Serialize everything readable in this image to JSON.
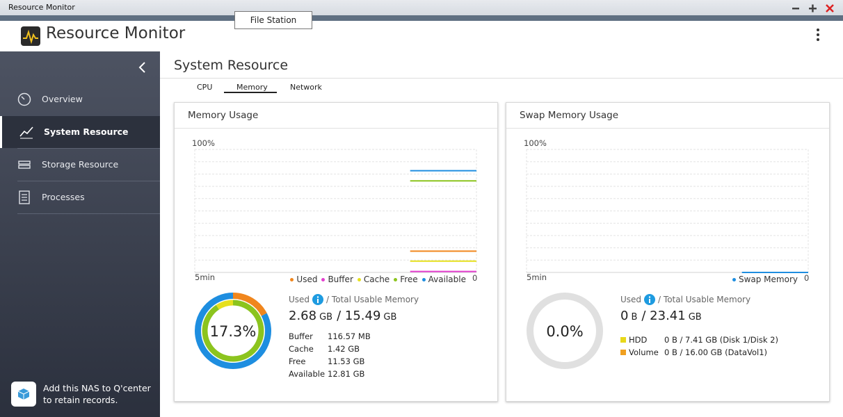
{
  "window": {
    "title": "Resource Monitor",
    "tooltip": "File Station"
  },
  "header": {
    "title": "Resource Monitor"
  },
  "sidebar": {
    "items": [
      "Overview",
      "System Resource",
      "Storage Resource",
      "Processes"
    ],
    "footer": [
      "Add this NAS to Q'center",
      "to retain records."
    ]
  },
  "main": {
    "title": "System Resource",
    "tabs": [
      "CPU",
      "Memory",
      "Network"
    ]
  },
  "panels": [
    {
      "title": "Memory Usage",
      "chart_data": {
        "type": "line",
        "x_label": "5min",
        "ylim": [
          0,
          100
        ],
        "yticks": [
          0,
          {
            "value": 100,
            "label": "100%"
          }
        ],
        "series": [
          {
            "name": "Used",
            "color": "#f0861d",
            "values": [
              null,
              null,
              null,
              null,
              null,
              null,
              null,
              null,
              null,
              null,
              null,
              null,
              null,
              17.3,
              17.3,
              17.3,
              17.3,
              17.3
            ]
          },
          {
            "name": "Buffer",
            "color": "#e43fcf",
            "values": [
              null,
              null,
              null,
              null,
              null,
              null,
              null,
              null,
              null,
              null,
              null,
              null,
              null,
              0.8,
              0.8,
              0.8,
              0.8,
              0.8
            ]
          },
          {
            "name": "Cache",
            "color": "#e6e01e",
            "values": [
              null,
              null,
              null,
              null,
              null,
              null,
              null,
              null,
              null,
              null,
              null,
              null,
              null,
              9.2,
              9.2,
              9.2,
              9.2,
              9.2
            ]
          },
          {
            "name": "Free",
            "color": "#8cc41e",
            "values": [
              null,
              null,
              null,
              null,
              null,
              null,
              null,
              null,
              null,
              null,
              null,
              null,
              null,
              74.4,
              74.4,
              74.4,
              74.4,
              74.4
            ]
          },
          {
            "name": "Available",
            "color": "#1e8ee0",
            "values": [
              null,
              null,
              null,
              null,
              null,
              null,
              null,
              null,
              null,
              null,
              null,
              null,
              null,
              82.7,
              82.7,
              82.7,
              82.7,
              82.7
            ]
          }
        ]
      },
      "donut": {
        "value": 17.3,
        "value_label": "17.3%"
      },
      "stats": {
        "labels": [
          "Used",
          "/ Total Usable Memory"
        ],
        "amount": [
          "2.68",
          "GB",
          "/ 15.49",
          "GB"
        ],
        "rows": [
          {
            "label": "Buffer",
            "value": "116.57 MB"
          },
          {
            "label": "Cache",
            "value": "1.42 GB"
          },
          {
            "label": "Free",
            "value": "11.53 GB"
          },
          {
            "label": "Available",
            "value": "12.81 GB"
          }
        ]
      }
    },
    {
      "title": "Swap Memory Usage",
      "chart_data": {
        "type": "line",
        "x_label": "5min",
        "ylim": [
          0,
          100
        ],
        "yticks": [
          0,
          {
            "value": 100,
            "label": "100%"
          }
        ],
        "series": [
          {
            "name": "Swap Memory",
            "color": "#1e8ee0",
            "values": [
              null,
              null,
              null,
              null,
              null,
              null,
              null,
              null,
              null,
              null,
              null,
              null,
              null,
              0,
              0,
              0,
              0,
              0
            ]
          }
        ]
      },
      "donut": {
        "value": 0,
        "value_label": "0.0%"
      },
      "stats": {
        "labels": [
          "Used",
          "/ Total Usable Memory"
        ],
        "amount": [
          "0",
          "B",
          "/ 23.41",
          "GB"
        ],
        "rows": [
          {
            "label": "HDD",
            "value": "0 B / 7.41 GB (Disk 1/Disk 2)",
            "color": "#e8d81a"
          },
          {
            "label": "Volume",
            "value": "0 B / 16.00 GB (DataVol1)",
            "color": "#f0a020"
          }
        ]
      }
    }
  ]
}
